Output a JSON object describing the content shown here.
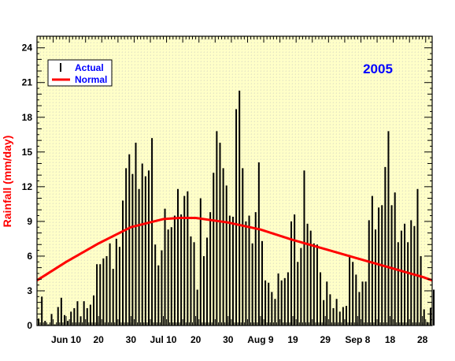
{
  "chart_data": {
    "type": "bar",
    "year_label": "2005",
    "ylabel": "Rainfall (mm/day)",
    "ylim": [
      0,
      25
    ],
    "yticks": [
      0,
      3,
      6,
      9,
      12,
      15,
      18,
      21,
      24
    ],
    "x_start": "2005-06-01",
    "x_end": "2005-10-01",
    "xtick_labels": [
      {
        "date": "2005-06-10",
        "label": "Jun 10"
      },
      {
        "date": "2005-06-20",
        "label": "20"
      },
      {
        "date": "2005-06-30",
        "label": "30"
      },
      {
        "date": "2005-07-10",
        "label": "Jul 10"
      },
      {
        "date": "2005-07-20",
        "label": "20"
      },
      {
        "date": "2005-07-30",
        "label": "30"
      },
      {
        "date": "2005-08-09",
        "label": "Aug 9"
      },
      {
        "date": "2005-08-19",
        "label": "19"
      },
      {
        "date": "2005-08-29",
        "label": "29"
      },
      {
        "date": "2005-09-08",
        "label": "Sep 8"
      },
      {
        "date": "2005-09-18",
        "label": "18"
      },
      {
        "date": "2005-09-28",
        "label": "28"
      }
    ],
    "legend": {
      "position": "top-left",
      "actual_label": "Actual",
      "normal_label": "Normal"
    },
    "colors": {
      "actual": "#000000",
      "normal": "#ff0000",
      "year": "#0000ff",
      "legend_text": "#0000ff",
      "ylabel": "#ff0000",
      "background": "#ffffc8",
      "grid": "#bbbbbb"
    },
    "grid": true,
    "series": [
      {
        "name": "Actual",
        "start_date": "2005-06-01",
        "values": [
          0.6,
          2.5,
          0.4,
          0.1,
          1.0,
          0.1,
          1.6,
          2.4,
          0.9,
          0.4,
          1.2,
          1.5,
          2.1,
          0.8,
          2.1,
          1.5,
          1.8,
          2.6,
          5.3,
          5.3,
          5.8,
          6.0,
          7.1,
          4.9,
          7.5,
          6.8,
          10.8,
          13.6,
          14.8,
          13.1,
          15.8,
          11.8,
          14.0,
          12.9,
          13.4,
          16.2,
          7.0,
          5.2,
          6.5,
          10.1,
          8.3,
          8.5,
          9.5,
          11.8,
          9.6,
          11.2,
          11.6,
          7.7,
          7.2,
          3.1,
          11.0,
          6.0,
          7.6,
          9.8,
          13.2,
          16.8,
          15.8,
          13.6,
          12.1,
          9.5,
          9.4,
          18.7,
          20.3,
          13.6,
          9.0,
          9.5,
          7.1,
          9.8,
          14.1,
          7.3,
          3.9,
          3.7,
          2.9,
          2.3,
          4.5,
          3.9,
          4.1,
          4.6,
          9.0,
          9.6,
          5.5,
          6.7,
          13.4,
          8.8,
          8.2,
          7.1,
          7.0,
          4.6,
          2.2,
          3.8,
          2.7,
          1.5,
          2.3,
          1.2,
          1.6,
          1.7,
          6.1,
          5.5,
          4.4,
          2.9,
          3.8,
          3.8,
          9.1,
          11.2,
          8.3,
          10.2,
          10.4,
          13.7,
          16.8,
          10.4,
          11.5,
          7.2,
          8.2,
          8.8,
          7.2,
          9.1,
          8.6,
          11.8,
          6.0,
          1.4,
          0.3,
          1.5,
          3.1
        ]
      },
      {
        "name": "Normal",
        "x": [
          "2005-06-01",
          "2005-06-10",
          "2005-06-20",
          "2005-06-30",
          "2005-07-10",
          "2005-07-15",
          "2005-07-20",
          "2005-07-30",
          "2005-08-09",
          "2005-08-19",
          "2005-08-29",
          "2005-09-08",
          "2005-09-18",
          "2005-09-28",
          "2005-10-01"
        ],
        "values": [
          3.9,
          5.5,
          7.1,
          8.5,
          9.2,
          9.3,
          9.3,
          8.9,
          8.3,
          7.4,
          6.6,
          5.8,
          5.0,
          4.2,
          3.9
        ]
      }
    ]
  }
}
